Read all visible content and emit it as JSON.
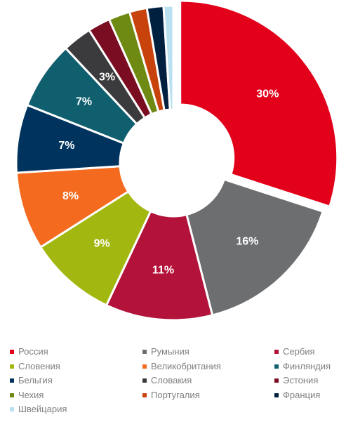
{
  "chart_data": {
    "type": "donut",
    "title": "",
    "legend_position": "bottom",
    "series": [
      {
        "name": "Россия",
        "value": 30,
        "label": "30%",
        "color": "#e2001a",
        "exploded": true
      },
      {
        "name": "Румыния",
        "value": 16,
        "label": "16%",
        "color": "#6d6e70"
      },
      {
        "name": "Сербия",
        "value": 11,
        "label": "11%",
        "color": "#b3123a"
      },
      {
        "name": "Словения",
        "value": 9,
        "label": "9%",
        "color": "#a2b70f"
      },
      {
        "name": "Великобритания",
        "value": 8,
        "label": "8%",
        "color": "#f46a1f"
      },
      {
        "name": "Бельгия",
        "value": 7,
        "label": "7%",
        "color": "#00345f"
      },
      {
        "name": "Финляндия",
        "value": 7,
        "label": "7%",
        "color": "#0f5f6e"
      },
      {
        "name": "Словакия",
        "value": 3,
        "label": "3%",
        "color": "#3b3b3d"
      },
      {
        "name": "Эстония",
        "value": 2.3,
        "label": "",
        "color": "#7a0d22"
      },
      {
        "name": "Чехия",
        "value": 2.2,
        "label": "",
        "color": "#6f8a12"
      },
      {
        "name": "Португалия",
        "value": 1.8,
        "label": "",
        "color": "#c8430c"
      },
      {
        "name": "Франция",
        "value": 1.7,
        "label": "",
        "color": "#00203f"
      },
      {
        "name": "Швейцария",
        "value": 1.0,
        "label": "",
        "color": "#b9e1f0"
      }
    ]
  },
  "legend": [
    [
      "Россия",
      "Румыния",
      "Сербия"
    ],
    [
      "Словения",
      "Великобритания",
      "Финляндия"
    ],
    [
      "Бельгия",
      "Словакия",
      "Эстония"
    ],
    [
      "Чехия",
      "Португалия",
      "Франция"
    ],
    [
      "Швейцария"
    ]
  ]
}
